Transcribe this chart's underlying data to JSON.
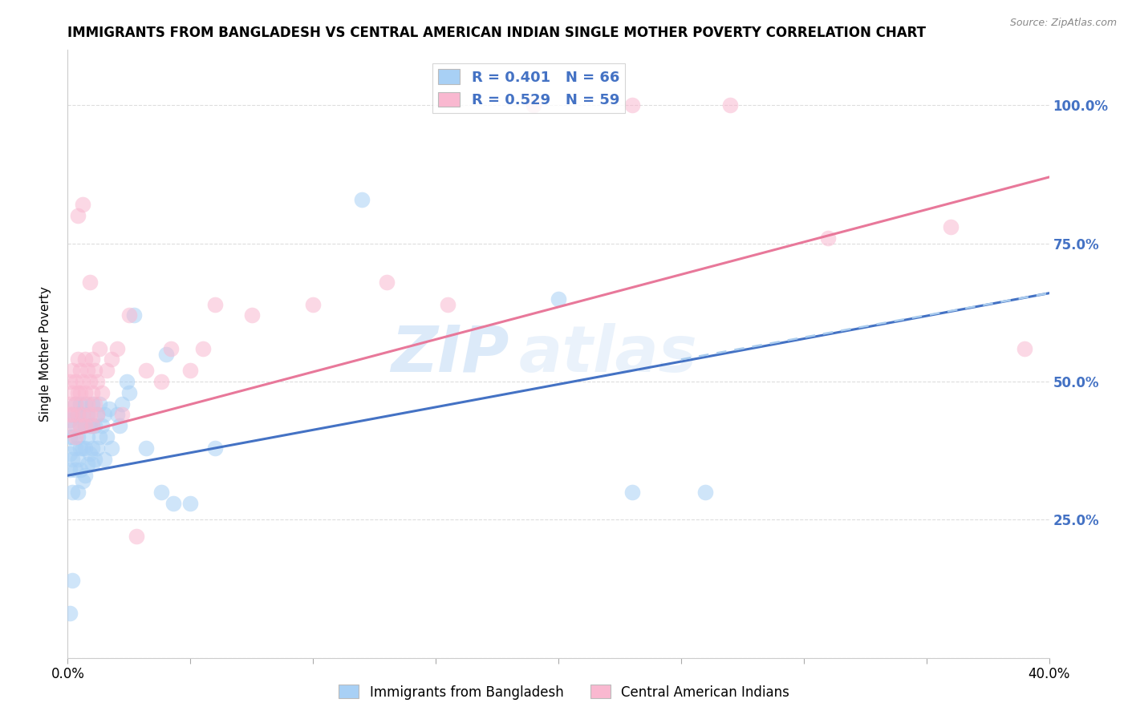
{
  "title": "IMMIGRANTS FROM BANGLADESH VS CENTRAL AMERICAN INDIAN SINGLE MOTHER POVERTY CORRELATION CHART",
  "source": "Source: ZipAtlas.com",
  "ylabel": "Single Mother Poverty",
  "right_yticks": [
    "100.0%",
    "75.0%",
    "50.0%",
    "25.0%"
  ],
  "right_ytick_vals": [
    1.0,
    0.75,
    0.5,
    0.25
  ],
  "xlim": [
    0.0,
    0.4
  ],
  "ylim": [
    0.0,
    1.1
  ],
  "legend_blue_label": "R = 0.401   N = 66",
  "legend_pink_label": "R = 0.529   N = 59",
  "blue_color": "#A8D0F5",
  "pink_color": "#F9B8D0",
  "blue_line_color": "#4472C4",
  "pink_line_color": "#E8789A",
  "dashed_line_color": "#A8D0F5",
  "watermark_zip": "ZIP",
  "watermark_atlas": "atlas",
  "blue_scatter_x": [
    0.001,
    0.001,
    0.001,
    0.001,
    0.002,
    0.002,
    0.002,
    0.002,
    0.003,
    0.003,
    0.003,
    0.003,
    0.004,
    0.004,
    0.004,
    0.004,
    0.005,
    0.005,
    0.005,
    0.005,
    0.006,
    0.006,
    0.006,
    0.007,
    0.007,
    0.007,
    0.007,
    0.008,
    0.008,
    0.008,
    0.009,
    0.009,
    0.01,
    0.01,
    0.01,
    0.01,
    0.011,
    0.011,
    0.012,
    0.012,
    0.013,
    0.013,
    0.014,
    0.015,
    0.015,
    0.016,
    0.017,
    0.018,
    0.02,
    0.021,
    0.022,
    0.024,
    0.025,
    0.027,
    0.032,
    0.038,
    0.04,
    0.043,
    0.05,
    0.06,
    0.12,
    0.2,
    0.23,
    0.26,
    0.001,
    0.002
  ],
  "blue_scatter_y": [
    0.34,
    0.37,
    0.4,
    0.43,
    0.3,
    0.36,
    0.4,
    0.44,
    0.34,
    0.38,
    0.42,
    0.46,
    0.3,
    0.36,
    0.4,
    0.44,
    0.34,
    0.38,
    0.42,
    0.46,
    0.32,
    0.38,
    0.44,
    0.33,
    0.38,
    0.42,
    0.46,
    0.35,
    0.4,
    0.44,
    0.37,
    0.42,
    0.35,
    0.38,
    0.42,
    0.46,
    0.36,
    0.42,
    0.38,
    0.44,
    0.4,
    0.46,
    0.42,
    0.36,
    0.44,
    0.4,
    0.45,
    0.38,
    0.44,
    0.42,
    0.46,
    0.5,
    0.48,
    0.62,
    0.38,
    0.3,
    0.55,
    0.28,
    0.28,
    0.38,
    0.83,
    0.65,
    0.3,
    0.3,
    0.08,
    0.14
  ],
  "pink_scatter_x": [
    0.001,
    0.001,
    0.001,
    0.002,
    0.002,
    0.002,
    0.003,
    0.003,
    0.003,
    0.004,
    0.004,
    0.004,
    0.005,
    0.005,
    0.005,
    0.006,
    0.006,
    0.007,
    0.007,
    0.007,
    0.008,
    0.008,
    0.009,
    0.009,
    0.01,
    0.01,
    0.01,
    0.011,
    0.011,
    0.012,
    0.012,
    0.013,
    0.014,
    0.016,
    0.018,
    0.02,
    0.022,
    0.025,
    0.028,
    0.032,
    0.038,
    0.042,
    0.05,
    0.055,
    0.06,
    0.075,
    0.1,
    0.13,
    0.155,
    0.19,
    0.23,
    0.27,
    0.31,
    0.36,
    0.39,
    0.001,
    0.004,
    0.006,
    0.009
  ],
  "pink_scatter_y": [
    0.42,
    0.46,
    0.5,
    0.44,
    0.48,
    0.52,
    0.4,
    0.46,
    0.5,
    0.44,
    0.48,
    0.54,
    0.42,
    0.48,
    0.52,
    0.44,
    0.5,
    0.42,
    0.48,
    0.54,
    0.46,
    0.52,
    0.44,
    0.5,
    0.42,
    0.48,
    0.54,
    0.46,
    0.52,
    0.44,
    0.5,
    0.56,
    0.48,
    0.52,
    0.54,
    0.56,
    0.44,
    0.62,
    0.22,
    0.52,
    0.5,
    0.56,
    0.52,
    0.56,
    0.64,
    0.62,
    0.64,
    0.68,
    0.64,
    1.0,
    1.0,
    1.0,
    0.76,
    0.78,
    0.56,
    0.44,
    0.8,
    0.82,
    0.68
  ],
  "blue_line_x0": 0.0,
  "blue_line_x1": 0.4,
  "blue_line_y0": 0.33,
  "blue_line_y1": 0.66,
  "pink_line_x0": 0.0,
  "pink_line_x1": 0.4,
  "pink_line_y0": 0.4,
  "pink_line_y1": 0.87,
  "dashed_line_x0": 0.25,
  "dashed_line_x1": 0.4,
  "dashed_line_y0": 0.54,
  "dashed_line_y1": 0.66,
  "grid_color": "#DDDDDD",
  "ytick_positions": [
    0.0,
    0.25,
    0.5,
    0.75,
    1.0
  ],
  "bottom_legend_blue": "Immigrants from Bangladesh",
  "bottom_legend_pink": "Central American Indians"
}
